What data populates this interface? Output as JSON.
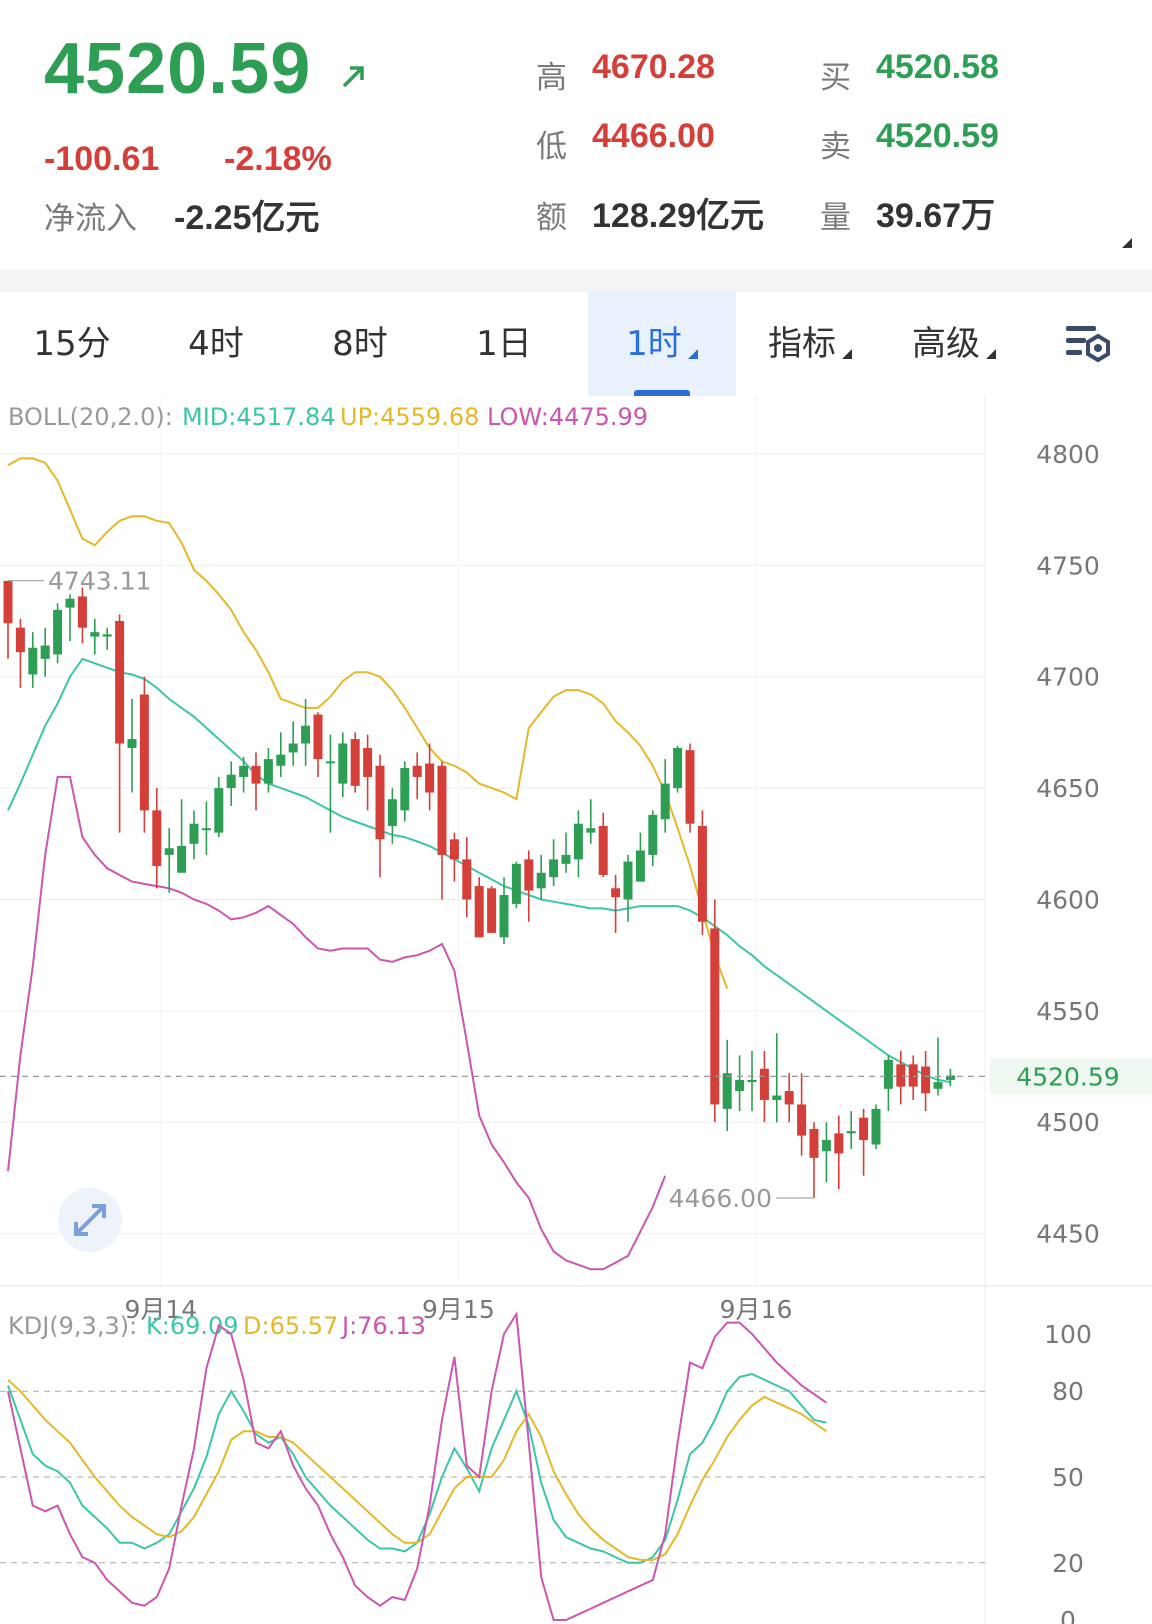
{
  "quote": {
    "price": "4520.59",
    "change": "-100.61",
    "change_pct": "-2.18%",
    "net_inflow_label": "净流入",
    "net_inflow_value": "-2.25亿元",
    "high_label": "高",
    "high_value": "4670.28",
    "low_label": "低",
    "low_value": "4466.00",
    "amount_label": "额",
    "amount_value": "128.29亿元",
    "bid_label": "买",
    "bid_value": "4520.58",
    "ask_label": "卖",
    "ask_value": "4520.59",
    "volume_label": "量",
    "volume_value": "39.67万"
  },
  "tabs": [
    {
      "label": "15分"
    },
    {
      "label": "4时"
    },
    {
      "label": "8时"
    },
    {
      "label": "1日"
    },
    {
      "label": "1时",
      "active": true
    },
    {
      "label": "指标"
    },
    {
      "label": "高级"
    }
  ],
  "colors": {
    "up": "#2f9e55",
    "down": "#d43f3a",
    "mid": "#3cc6a8",
    "upper": "#e5b82a",
    "lower": "#cc55b0",
    "accent": "#2a6fdb"
  },
  "chart_data": [
    {
      "type": "candlestick",
      "indicator": {
        "name": "BOLL(20,2.0):",
        "mid_label": "MID:4517.84",
        "up_label": "UP:4559.68",
        "low_label": "LOW:4475.99"
      },
      "y_ticks": [
        "4800",
        "4750",
        "4700",
        "4650",
        "4600",
        "4550",
        "4500",
        "4450"
      ],
      "ylim": [
        4422,
        4826
      ],
      "x_labels": [
        "9月14",
        "9月15",
        "9月16"
      ],
      "x_label_index": [
        12,
        36,
        60
      ],
      "last_price_label": "4520.59",
      "high_annotation": "4743.11",
      "low_annotation": "4466.00",
      "candles": [
        [
          4743,
          4724,
          4743,
          4708
        ],
        [
          4722,
          4711,
          4726,
          4695
        ],
        [
          4701,
          4713,
          4720,
          4695
        ],
        [
          4708,
          4714,
          4722,
          4700
        ],
        [
          4710,
          4730,
          4733,
          4706
        ],
        [
          4731,
          4735,
          4737,
          4716
        ],
        [
          4736,
          4722,
          4740,
          4715
        ],
        [
          4718,
          4720,
          4726,
          4710
        ],
        [
          4718,
          4719,
          4722,
          4712
        ],
        [
          4725,
          4670,
          4728,
          4630
        ],
        [
          4668,
          4672,
          4690,
          4648
        ],
        [
          4692,
          4640,
          4700,
          4630
        ],
        [
          4640,
          4615,
          4650,
          4605
        ],
        [
          4620,
          4623,
          4632,
          4603
        ],
        [
          4612,
          4624,
          4645,
          4612
        ],
        [
          4625,
          4634,
          4640,
          4618
        ],
        [
          4632,
          4632,
          4644,
          4620
        ],
        [
          4630,
          4650,
          4655,
          4628
        ],
        [
          4650,
          4656,
          4662,
          4642
        ],
        [
          4655,
          4660,
          4664,
          4648
        ],
        [
          4660,
          4652,
          4666,
          4640
        ],
        [
          4652,
          4663,
          4668,
          4648
        ],
        [
          4660,
          4665,
          4675,
          4655
        ],
        [
          4666,
          4670,
          4680,
          4660
        ],
        [
          4670,
          4678,
          4690,
          4660
        ],
        [
          4683,
          4663,
          4684,
          4655
        ],
        [
          4662,
          4662,
          4674,
          4630
        ],
        [
          4652,
          4670,
          4675,
          4646
        ],
        [
          4672,
          4651,
          4675,
          4648
        ],
        [
          4668,
          4655,
          4674,
          4640
        ],
        [
          4660,
          4627,
          4665,
          4610
        ],
        [
          4633,
          4645,
          4650,
          4625
        ],
        [
          4640,
          4659,
          4662,
          4635
        ],
        [
          4660,
          4655,
          4666,
          4645
        ],
        [
          4661,
          4648,
          4670,
          4640
        ],
        [
          4660,
          4620,
          4662,
          4600
        ],
        [
          4627,
          4618,
          4630,
          4608
        ],
        [
          4618,
          4600,
          4628,
          4592
        ],
        [
          4606,
          4583,
          4610,
          4583
        ],
        [
          4605,
          4585,
          4606,
          4585
        ],
        [
          4583,
          4602,
          4610,
          4580
        ],
        [
          4598,
          4616,
          4617,
          4596
        ],
        [
          4618,
          4604,
          4622,
          4590
        ],
        [
          4605,
          4612,
          4620,
          4600
        ],
        [
          4610,
          4618,
          4627,
          4606
        ],
        [
          4616,
          4620,
          4630,
          4612
        ],
        [
          4618,
          4634,
          4640,
          4610
        ],
        [
          4630,
          4632,
          4645,
          4625
        ],
        [
          4633,
          4611,
          4639,
          4610
        ],
        [
          4605,
          4601,
          4611,
          4585
        ],
        [
          4600,
          4617,
          4620,
          4590
        ],
        [
          4608,
          4622,
          4630,
          4610
        ],
        [
          4620,
          4638,
          4640,
          4615
        ],
        [
          4636,
          4652,
          4663,
          4630
        ],
        [
          4650,
          4668,
          4669,
          4648
        ],
        [
          4667,
          4634,
          4670,
          4630
        ],
        [
          4633,
          4590,
          4640,
          4584
        ],
        [
          4587,
          4508,
          4600,
          4500
        ],
        [
          4506,
          4522,
          4537,
          4496
        ],
        [
          4514,
          4519,
          4530,
          4505
        ],
        [
          4518,
          4519,
          4532,
          4505
        ],
        [
          4524,
          4510,
          4532,
          4500
        ],
        [
          4510,
          4512,
          4540,
          4500
        ],
        [
          4514,
          4508,
          4522,
          4500
        ],
        [
          4508,
          4494,
          4522,
          4485
        ],
        [
          4497,
          4484,
          4500,
          4466
        ],
        [
          4487,
          4492,
          4500,
          4473
        ],
        [
          4495,
          4486,
          4503,
          4470
        ],
        [
          4495,
          4496,
          4505,
          4488
        ],
        [
          4502,
          4492,
          4506,
          4476
        ],
        [
          4490,
          4506,
          4508,
          4488
        ],
        [
          4515,
          4528,
          4530,
          4505
        ],
        [
          4526,
          4516,
          4532,
          4508
        ],
        [
          4526,
          4516,
          4530,
          4510
        ],
        [
          4525,
          4513,
          4532,
          4505
        ],
        [
          4515,
          4518,
          4538,
          4512
        ],
        [
          4519,
          4521,
          4524,
          4516
        ]
      ],
      "series": [
        {
          "name": "MID",
          "values": [
            4640,
            4652,
            4665,
            4678,
            4688,
            4700,
            4708,
            4706,
            4704,
            4702,
            4701,
            4699,
            4695,
            4690,
            4686,
            4682,
            4677,
            4672,
            4667,
            4662,
            4656,
            4652,
            4650,
            4648,
            4646,
            4643,
            4640,
            4637,
            4635,
            4633,
            4631,
            4629,
            4628,
            4626,
            4624,
            4621,
            4618,
            4615,
            4612,
            4609,
            4606,
            4604,
            4602,
            4600,
            4599,
            4598,
            4597,
            4596,
            4596,
            4595,
            4596,
            4597,
            4597,
            4597,
            4597,
            4595,
            4592,
            4588,
            4584,
            4579,
            4575,
            4570,
            4566,
            4562,
            4558,
            4554,
            4550,
            4546,
            4542,
            4538,
            4534,
            4530,
            4527,
            4524,
            4521,
            4519,
            4518
          ]
        },
        {
          "name": "UP",
          "values": [
            4795,
            4798,
            4798,
            4796,
            4788,
            4775,
            4762,
            4759,
            4765,
            4770,
            4772,
            4772,
            4770,
            4769,
            4760,
            4748,
            4743,
            4737,
            4730,
            4720,
            4712,
            4702,
            4690,
            4688,
            4686,
            4686,
            4691,
            4698,
            4702,
            4702,
            4700,
            4694,
            4686,
            4677,
            4668,
            4662,
            4660,
            4657,
            4652,
            4650,
            4648,
            4645,
            4677,
            4684,
            4691,
            4694,
            4694,
            4692,
            4688,
            4680,
            4675,
            4669,
            4660,
            4648,
            4632,
            4615,
            4595,
            4575,
            4560
          ]
        },
        {
          "name": "LOW",
          "values": [
            4478,
            4530,
            4570,
            4620,
            4655,
            4655,
            4628,
            4620,
            4614,
            4611,
            4608,
            4607,
            4606,
            4605,
            4603,
            4600,
            4598,
            4595,
            4591,
            4592,
            4594,
            4597,
            4593,
            4589,
            4583,
            4578,
            4577,
            4578,
            4578,
            4578,
            4573,
            4572,
            4574,
            4575,
            4577,
            4580,
            4568,
            4536,
            4503,
            4490,
            4482,
            4473,
            4466,
            4452,
            4442,
            4438,
            4436,
            4434,
            4434,
            4437,
            4440,
            4451,
            4462,
            4476
          ]
        }
      ]
    },
    {
      "type": "line",
      "indicator": {
        "name": "KDJ(9,3,3):",
        "k_label": "K:69.09",
        "d_label": "D:65.57",
        "j_label": "J:76.13"
      },
      "y_ticks": [
        "100",
        "80",
        "50",
        "20",
        "0"
      ],
      "ylim": [
        0,
        107
      ],
      "series": [
        {
          "name": "K",
          "values": [
            82,
            70,
            58,
            54,
            52,
            48,
            40,
            36,
            32,
            27,
            27,
            25,
            27,
            30,
            38,
            46,
            57,
            72,
            80,
            73,
            65,
            62,
            64,
            58,
            50,
            45,
            40,
            36,
            32,
            28,
            25,
            25,
            24,
            27,
            37,
            50,
            60,
            53,
            45,
            60,
            70,
            80,
            68,
            48,
            35,
            29,
            27,
            25,
            24,
            22,
            20,
            20,
            22,
            28,
            42,
            58,
            62,
            70,
            80,
            85,
            86,
            84,
            82,
            80,
            75,
            70,
            69
          ]
        },
        {
          "name": "D",
          "values": [
            84,
            80,
            75,
            70,
            66,
            62,
            56,
            50,
            45,
            40,
            36,
            33,
            30,
            29,
            31,
            36,
            44,
            52,
            63,
            66,
            66,
            64,
            64,
            62,
            58,
            54,
            50,
            46,
            42,
            38,
            34,
            30,
            27,
            27,
            30,
            38,
            46,
            50,
            50,
            50,
            56,
            66,
            72,
            64,
            52,
            44,
            37,
            32,
            28,
            25,
            22,
            21,
            21,
            23,
            30,
            40,
            49,
            56,
            64,
            70,
            75,
            78,
            76,
            74,
            72,
            69,
            66
          ]
        },
        {
          "name": "J",
          "values": [
            80,
            60,
            40,
            38,
            40,
            30,
            22,
            20,
            14,
            10,
            6,
            5,
            8,
            18,
            40,
            60,
            88,
            103,
            100,
            84,
            62,
            60,
            66,
            54,
            46,
            40,
            30,
            22,
            12,
            8,
            5,
            8,
            7,
            18,
            40,
            70,
            92,
            54,
            50,
            80,
            100,
            107,
            62,
            15,
            0,
            0,
            2,
            4,
            6,
            8,
            10,
            12,
            14,
            30,
            62,
            90,
            88,
            99,
            104,
            104,
            100,
            95,
            90,
            86,
            82,
            79,
            76
          ]
        }
      ]
    }
  ]
}
